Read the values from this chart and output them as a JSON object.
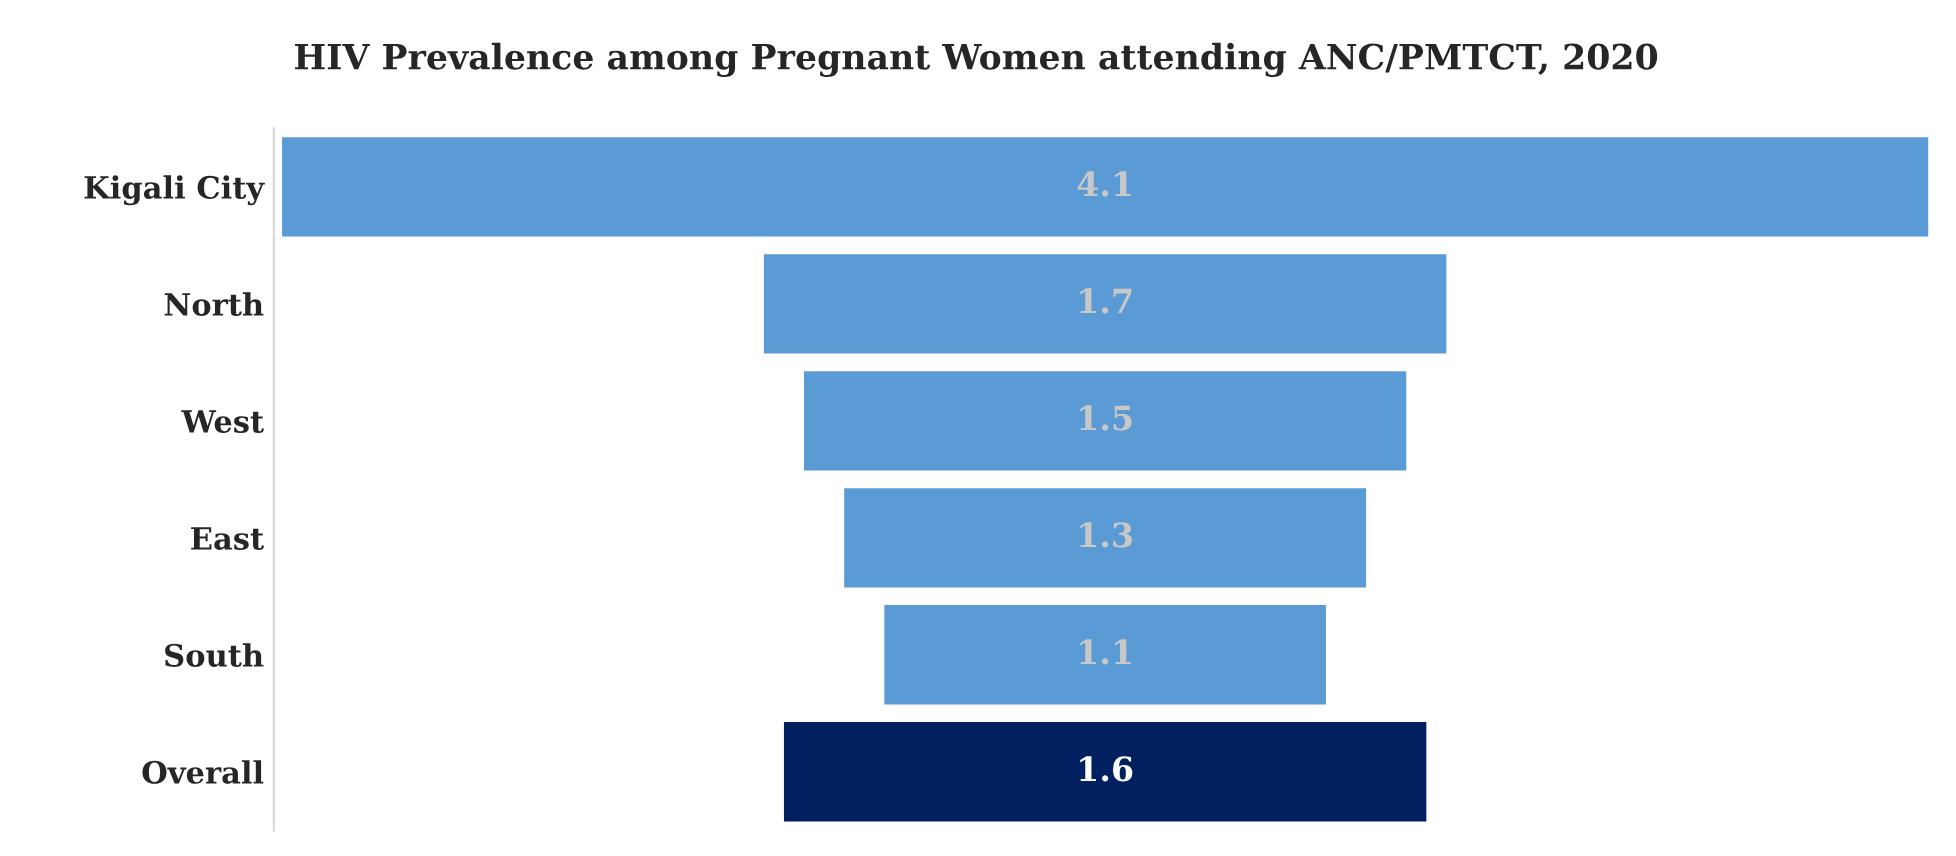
{
  "chart_data": {
    "type": "other",
    "title": "HIV Prevalence among Pregnant Women attending ANC/PMTCT, 2020",
    "categories": [
      "Kigali City",
      "North",
      "West",
      "East",
      "South",
      "Overall"
    ],
    "values": [
      4.1,
      1.7,
      1.5,
      1.3,
      1.1,
      1.6
    ],
    "colors": [
      "#5b9bd5",
      "#5b9bd5",
      "#5b9bd5",
      "#5b9bd5",
      "#5b9bd5",
      "#002060"
    ],
    "data_labels": true
  }
}
